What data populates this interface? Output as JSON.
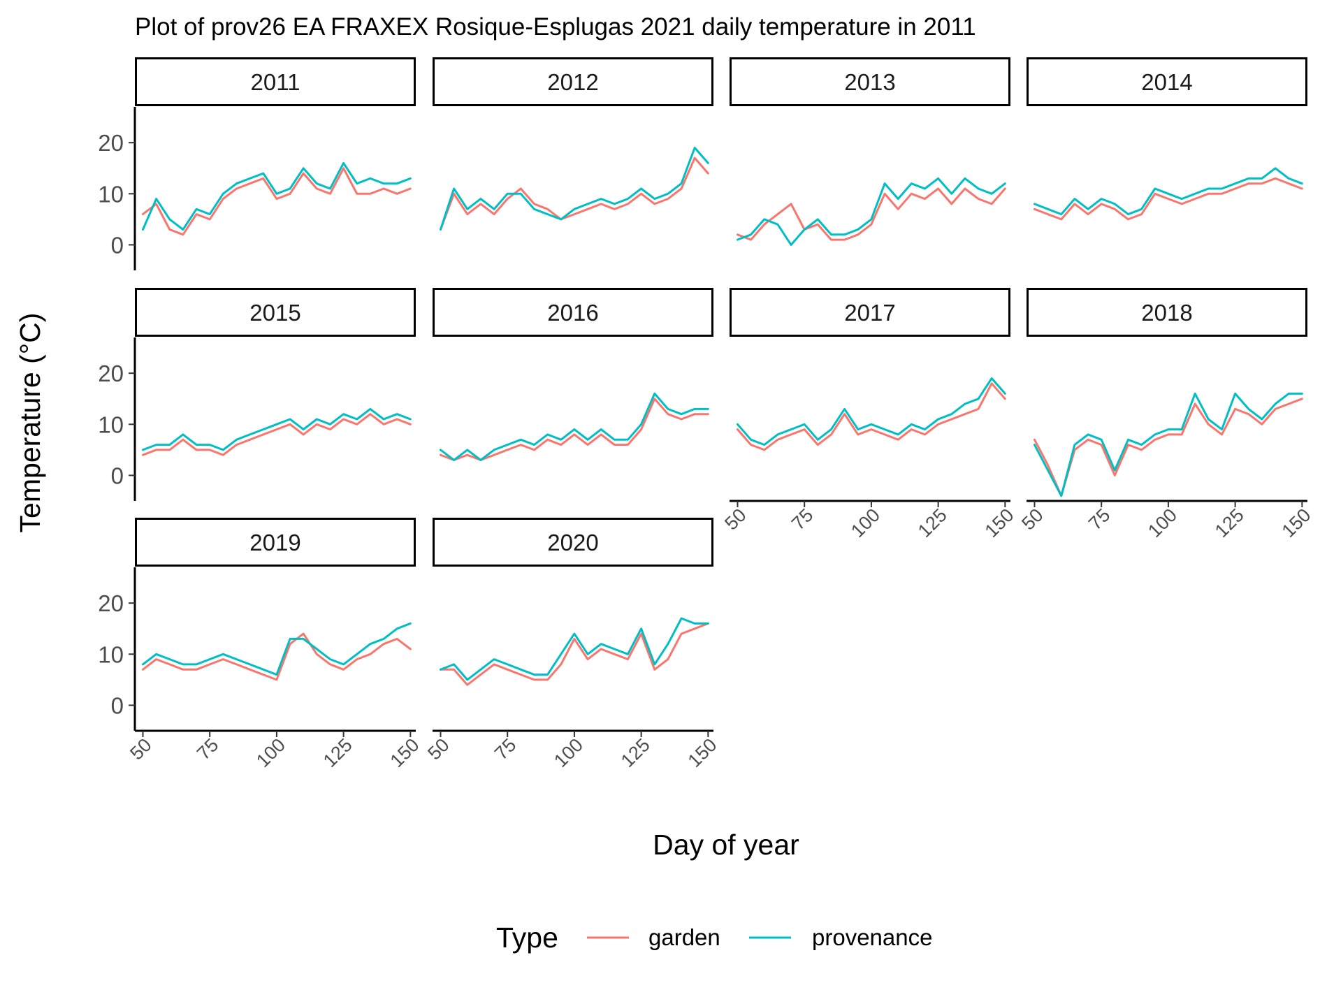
{
  "chart_data": {
    "type": "line",
    "title": "Plot of prov26 EA FRAXEX Rosique-Esplugas 2021 daily temperature in 2011",
    "xlabel": "Day of year",
    "ylabel": "Temperature (°C)",
    "xlim": [
      47,
      152
    ],
    "ylim": [
      -5,
      27
    ],
    "x_ticks": [
      50,
      75,
      100,
      125,
      150
    ],
    "y_ticks": [
      0,
      10,
      20
    ],
    "grid": false,
    "legend": {
      "title": "Type",
      "position": "bottom",
      "entries": [
        {
          "label": "garden",
          "color": "#F8766D"
        },
        {
          "label": "provenance",
          "color": "#00BFC4"
        }
      ]
    },
    "x": [
      50,
      55,
      60,
      65,
      70,
      75,
      80,
      85,
      90,
      95,
      100,
      105,
      110,
      115,
      120,
      125,
      130,
      135,
      140,
      145,
      150
    ],
    "panels": [
      {
        "label": "2011",
        "series": [
          {
            "name": "garden",
            "values": [
              6,
              8,
              3,
              2,
              6,
              5,
              9,
              11,
              12,
              13,
              9,
              10,
              14,
              11,
              10,
              15,
              10,
              10,
              11,
              10,
              11
            ]
          },
          {
            "name": "provenance",
            "values": [
              3,
              9,
              5,
              3,
              7,
              6,
              10,
              12,
              13,
              14,
              10,
              11,
              15,
              12,
              11,
              16,
              12,
              13,
              12,
              12,
              13
            ]
          }
        ]
      },
      {
        "label": "2012",
        "series": [
          {
            "name": "garden",
            "values": [
              3,
              10,
              6,
              8,
              6,
              9,
              11,
              8,
              7,
              5,
              6,
              7,
              8,
              7,
              8,
              10,
              8,
              9,
              11,
              17,
              14
            ]
          },
          {
            "name": "provenance",
            "values": [
              3,
              11,
              7,
              9,
              7,
              10,
              10,
              7,
              6,
              5,
              7,
              8,
              9,
              8,
              9,
              11,
              9,
              10,
              12,
              19,
              16
            ]
          }
        ]
      },
      {
        "label": "2013",
        "series": [
          {
            "name": "garden",
            "values": [
              2,
              1,
              4,
              6,
              8,
              3,
              4,
              1,
              1,
              2,
              4,
              10,
              7,
              10,
              9,
              11,
              8,
              11,
              9,
              8,
              11
            ]
          },
          {
            "name": "provenance",
            "values": [
              1,
              2,
              5,
              4,
              0,
              3,
              5,
              2,
              2,
              3,
              5,
              12,
              9,
              12,
              11,
              13,
              10,
              13,
              11,
              10,
              12
            ]
          }
        ]
      },
      {
        "label": "2014",
        "series": [
          {
            "name": "garden",
            "values": [
              7,
              6,
              5,
              8,
              6,
              8,
              7,
              5,
              6,
              10,
              9,
              8,
              9,
              10,
              10,
              11,
              12,
              12,
              13,
              12,
              11
            ]
          },
          {
            "name": "provenance",
            "values": [
              8,
              7,
              6,
              9,
              7,
              9,
              8,
              6,
              7,
              11,
              10,
              9,
              10,
              11,
              11,
              12,
              13,
              13,
              15,
              13,
              12
            ]
          }
        ]
      },
      {
        "label": "2015",
        "series": [
          {
            "name": "garden",
            "values": [
              4,
              5,
              5,
              7,
              5,
              5,
              4,
              6,
              7,
              8,
              9,
              10,
              8,
              10,
              9,
              11,
              10,
              12,
              10,
              11,
              10
            ]
          },
          {
            "name": "provenance",
            "values": [
              5,
              6,
              6,
              8,
              6,
              6,
              5,
              7,
              8,
              9,
              10,
              11,
              9,
              11,
              10,
              12,
              11,
              13,
              11,
              12,
              11
            ]
          }
        ]
      },
      {
        "label": "2016",
        "series": [
          {
            "name": "garden",
            "values": [
              4,
              3,
              4,
              3,
              4,
              5,
              6,
              5,
              7,
              6,
              8,
              6,
              8,
              6,
              6,
              9,
              15,
              12,
              11,
              12,
              12
            ]
          },
          {
            "name": "provenance",
            "values": [
              5,
              3,
              5,
              3,
              5,
              6,
              7,
              6,
              8,
              7,
              9,
              7,
              9,
              7,
              7,
              10,
              16,
              13,
              12,
              13,
              13
            ]
          }
        ]
      },
      {
        "label": "2017",
        "series": [
          {
            "name": "garden",
            "values": [
              9,
              6,
              5,
              7,
              8,
              9,
              6,
              8,
              12,
              8,
              9,
              8,
              7,
              9,
              8,
              10,
              11,
              12,
              13,
              18,
              15
            ]
          },
          {
            "name": "provenance",
            "values": [
              10,
              7,
              6,
              8,
              9,
              10,
              7,
              9,
              13,
              9,
              10,
              9,
              8,
              10,
              9,
              11,
              12,
              14,
              15,
              19,
              16
            ]
          }
        ]
      },
      {
        "label": "2018",
        "series": [
          {
            "name": "garden",
            "values": [
              7,
              2,
              -4,
              5,
              7,
              6,
              0,
              6,
              5,
              7,
              8,
              8,
              14,
              10,
              8,
              13,
              12,
              10,
              13,
              14,
              15
            ]
          },
          {
            "name": "provenance",
            "values": [
              6,
              1,
              -4,
              6,
              8,
              7,
              1,
              7,
              6,
              8,
              9,
              9,
              16,
              11,
              9,
              16,
              13,
              11,
              14,
              16,
              16
            ]
          }
        ]
      },
      {
        "label": "2019",
        "series": [
          {
            "name": "garden",
            "values": [
              7,
              9,
              8,
              7,
              7,
              8,
              9,
              8,
              7,
              6,
              5,
              12,
              14,
              10,
              8,
              7,
              9,
              10,
              12,
              13,
              11
            ]
          },
          {
            "name": "provenance",
            "values": [
              8,
              10,
              9,
              8,
              8,
              9,
              10,
              9,
              8,
              7,
              6,
              13,
              13,
              11,
              9,
              8,
              10,
              12,
              13,
              15,
              16
            ]
          }
        ]
      },
      {
        "label": "2020",
        "series": [
          {
            "name": "garden",
            "values": [
              7,
              7,
              4,
              6,
              8,
              7,
              6,
              5,
              5,
              8,
              13,
              9,
              11,
              10,
              9,
              14,
              7,
              9,
              14,
              15,
              16
            ]
          },
          {
            "name": "provenance",
            "values": [
              7,
              8,
              5,
              7,
              9,
              8,
              7,
              6,
              6,
              10,
              14,
              10,
              12,
              11,
              10,
              15,
              8,
              12,
              17,
              16,
              16
            ]
          }
        ]
      }
    ]
  }
}
